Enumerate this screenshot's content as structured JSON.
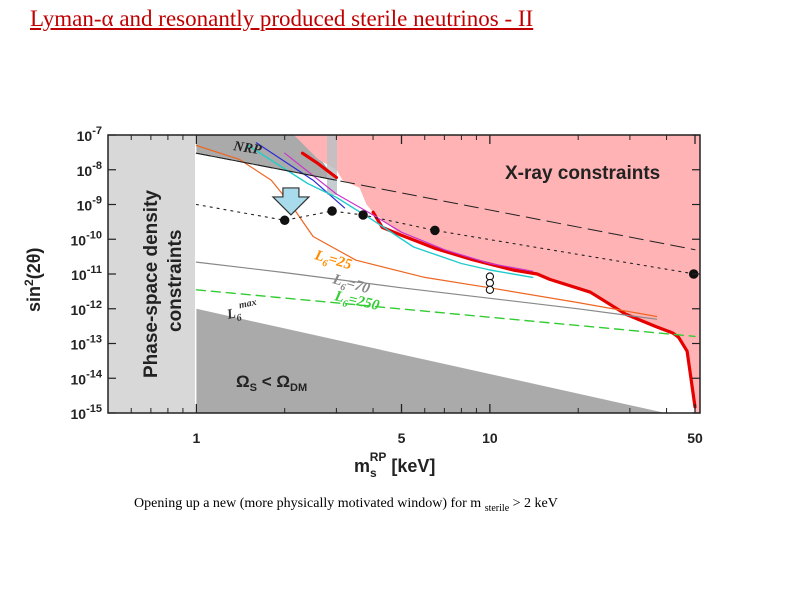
{
  "slide": {
    "title": "Lyman-α and resonantly produced sterile neutrinos - II",
    "caption_main": "Opening up a new (more physically motivated window) for m",
    "caption_sub": "sterile",
    "caption_tail": " > 2 keV"
  },
  "colors": {
    "title": "#c00000",
    "xray_region": "#ffb3b5",
    "phase_space_region": "#d8d8d8",
    "omega_region": "#aaaaaa",
    "constraint_curve": "#e60000",
    "lyman_arrow": "#a8dcec"
  },
  "chart_data": {
    "type": "line",
    "xscale": "log",
    "yscale": "log",
    "xlim": [
      0.5,
      52
    ],
    "ylim": [
      1e-15,
      1e-07
    ],
    "xticks": [
      1,
      5,
      10,
      50
    ],
    "xtick_labels": [
      "1",
      "5",
      "10",
      "50"
    ],
    "yticks": [
      1e-07,
      1e-08,
      1e-09,
      1e-10,
      1e-11,
      1e-12,
      1e-13,
      1e-14,
      1e-15
    ],
    "ytick_labels": [
      {
        "base": "10",
        "exp": "-7"
      },
      {
        "base": "10",
        "exp": "-8"
      },
      {
        "base": "10",
        "exp": "-9"
      },
      {
        "base": "10",
        "exp": "-10"
      },
      {
        "base": "10",
        "exp": "-11"
      },
      {
        "base": "10",
        "exp": "-12"
      },
      {
        "base": "10",
        "exp": "-13"
      },
      {
        "base": "10",
        "exp": "-14"
      },
      {
        "base": "10",
        "exp": "-15"
      }
    ],
    "xlabel": {
      "main": "m",
      "sub": "s",
      "sup": "RP",
      "unit": " [keV]"
    },
    "ylabel": {
      "main": "sin",
      "sup": "2",
      "tail": "(2θ)"
    },
    "regions": {
      "phase_space_label_1": "Phase-space density",
      "phase_space_label_2": "constraints",
      "xray_label": "X-ray constraints",
      "omega_label": "Ω",
      "omega_sub": "S",
      "omega_mid": " < Ω",
      "omega_sub2": "DM",
      "nrp_label": "NRP"
    },
    "annotations": [
      {
        "text": "L",
        "sub": "6",
        "tail": "=25",
        "color": "#ff8c00"
      },
      {
        "text": "L",
        "sub": "6",
        "tail": "=70",
        "color": "#888888"
      },
      {
        "text": "L",
        "sub": "6",
        "tail": "=250",
        "color": "#33cc33"
      },
      {
        "text": "L",
        "sub": "6",
        "sup": "max",
        "color": "#333333"
      }
    ],
    "xray_region": [
      {
        "x": 2.15,
        "y": 1e-07
      },
      {
        "x": 3.0,
        "y": 1e-07
      },
      {
        "x": 3.15,
        "y": 1e-07
      },
      {
        "x": 52,
        "y": 1e-07
      },
      {
        "x": 52,
        "y": 1e-15
      },
      {
        "x": 50,
        "y": 1e-15
      },
      {
        "x": 47,
        "y": 6e-14
      },
      {
        "x": 42,
        "y": 2e-13
      },
      {
        "x": 37,
        "y": 3e-13
      },
      {
        "x": 29,
        "y": 7e-13
      },
      {
        "x": 22,
        "y": 3e-12
      },
      {
        "x": 17,
        "y": 6e-12
      },
      {
        "x": 14.5,
        "y": 1e-11
      },
      {
        "x": 12,
        "y": 1.3e-11
      },
      {
        "x": 8.7,
        "y": 2.6e-11
      },
      {
        "x": 6.5,
        "y": 5.5e-11
      },
      {
        "x": 5.0,
        "y": 1.3e-10
      },
      {
        "x": 4.0,
        "y": 6e-10
      },
      {
        "x": 3.8,
        "y": 1e-09
      },
      {
        "x": 3.6,
        "y": 3e-09
      },
      {
        "x": 3.15,
        "y": 5e-09
      },
      {
        "x": 3.0,
        "y": 1e-08
      },
      {
        "x": 2.6,
        "y": 2e-08
      }
    ],
    "series": [
      {
        "name": "",
        "color": "#e60000",
        "width": 3.2,
        "dash": "",
        "points": [
          {
            "x": 4.0,
            "y": 6e-10
          },
          {
            "x": 4.3,
            "y": 2.2e-10
          },
          {
            "x": 5.0,
            "y": 1.3e-10
          },
          {
            "x": 6.5,
            "y": 5.5e-11
          },
          {
            "x": 8.7,
            "y": 2.6e-11
          },
          {
            "x": 12,
            "y": 1.3e-11
          },
          {
            "x": 14.5,
            "y": 1e-11
          },
          {
            "x": 16,
            "y": 7e-12
          },
          {
            "x": 22,
            "y": 3e-12
          },
          {
            "x": 29,
            "y": 7e-13
          },
          {
            "x": 37,
            "y": 3e-13
          },
          {
            "x": 42,
            "y": 2e-13
          },
          {
            "x": 44,
            "y": 1.5e-13
          },
          {
            "x": 47,
            "y": 6e-14
          },
          {
            "x": 50,
            "y": 1.5e-15
          }
        ]
      },
      {
        "name": "",
        "color": "#e60000",
        "width": 3.2,
        "dash": "",
        "points": [
          {
            "x": 2.3,
            "y": 3e-08
          },
          {
            "x": 2.6,
            "y": 1.5e-08
          },
          {
            "x": 3.0,
            "y": 6e-09
          }
        ]
      },
      {
        "name": "",
        "color": "#cc33cc",
        "width": 1.2,
        "dash": "",
        "points": [
          {
            "x": 2.0,
            "y": 3e-08
          },
          {
            "x": 3.0,
            "y": 2e-09
          },
          {
            "x": 4.0,
            "y": 5e-10
          },
          {
            "x": 5.0,
            "y": 1.6e-10
          },
          {
            "x": 7.0,
            "y": 5e-11
          },
          {
            "x": 10,
            "y": 2e-11
          },
          {
            "x": 14,
            "y": 1.2e-11
          }
        ]
      },
      {
        "name": "",
        "color": "#2b2bd8",
        "width": 1.2,
        "dash": "",
        "points": [
          {
            "x": 1.6,
            "y": 6e-08
          },
          {
            "x": 2.5,
            "y": 5e-09
          },
          {
            "x": 3.2,
            "y": 8e-10
          }
        ]
      },
      {
        "name": "",
        "color": "#22cccc",
        "width": 1.4,
        "dash": "",
        "points": [
          {
            "x": 1.5,
            "y": 5e-08
          },
          {
            "x": 2.4,
            "y": 4e-09
          },
          {
            "x": 3.0,
            "y": 1.6e-09
          },
          {
            "x": 4.0,
            "y": 3.5e-10
          },
          {
            "x": 5.5,
            "y": 6e-11
          },
          {
            "x": 8.0,
            "y": 2e-11
          },
          {
            "x": 10,
            "y": 1.3e-11
          },
          {
            "x": 14,
            "y": 8e-12
          }
        ]
      },
      {
        "name": "",
        "color": "#ee6622",
        "width": 1.2,
        "dash": "",
        "points": [
          {
            "x": 1.0,
            "y": 5e-08
          },
          {
            "x": 1.4,
            "y": 2e-08
          },
          {
            "x": 1.8,
            "y": 5e-09
          },
          {
            "x": 2.1,
            "y": 1e-09
          },
          {
            "x": 2.5,
            "y": 1.2e-10
          },
          {
            "x": 3.5,
            "y": 2.5e-11
          },
          {
            "x": 6.0,
            "y": 8e-12
          },
          {
            "x": 10,
            "y": 4e-12
          },
          {
            "x": 20,
            "y": 1.5e-12
          },
          {
            "x": 37,
            "y": 6e-13
          }
        ]
      },
      {
        "name": "",
        "color": "#888888",
        "width": 1.2,
        "dash": "",
        "points": [
          {
            "x": 1.0,
            "y": 2.2e-11
          },
          {
            "x": 2.0,
            "y": 1.1e-11
          },
          {
            "x": 5.0,
            "y": 4e-12
          },
          {
            "x": 10,
            "y": 2e-12
          },
          {
            "x": 20,
            "y": 1e-12
          },
          {
            "x": 37,
            "y": 5e-13
          }
        ]
      },
      {
        "name": "",
        "color": "#33cc33",
        "width": 1.4,
        "dash": "9,6",
        "points": [
          {
            "x": 1.0,
            "y": 3.5e-12
          },
          {
            "x": 50,
            "y": 1.6e-13
          }
        ]
      },
      {
        "name": "",
        "color": "#222222",
        "width": 1.0,
        "dash": "14,7",
        "points": [
          {
            "x": 1.0,
            "y": 3e-08
          },
          {
            "x": 50,
            "y": 5e-11
          }
        ]
      },
      {
        "name": "",
        "color": "#222222",
        "width": 1.1,
        "dash": "2,5",
        "points": [
          {
            "x": 1.0,
            "y": 1e-09
          },
          {
            "x": 2.0,
            "y": 3.5e-10
          },
          {
            "x": 2.9,
            "y": 6.5e-10
          },
          {
            "x": 3.7,
            "y": 5e-10
          },
          {
            "x": 6.5,
            "y": 1.8e-10
          },
          {
            "x": 50,
            "y": 1e-11
          }
        ]
      },
      {
        "name": "",
        "color": "#222222",
        "width": 1.0,
        "dash": "",
        "points": [
          {
            "x": 1.0,
            "y": 3e-08
          },
          {
            "x": 3.0,
            "y": 5e-09
          }
        ]
      }
    ],
    "markers": [
      {
        "x": 2.0,
        "y": 3.5e-10,
        "filled": true
      },
      {
        "x": 2.9,
        "y": 6.5e-10,
        "filled": true
      },
      {
        "x": 3.7,
        "y": 5e-10,
        "filled": true
      },
      {
        "x": 6.5,
        "y": 1.8e-10,
        "filled": true
      },
      {
        "x": 49.5,
        "y": 1e-11,
        "filled": true
      },
      {
        "x": 10,
        "y": 8.5e-12,
        "filled": false
      },
      {
        "x": 10,
        "y": 5.5e-12,
        "filled": false
      },
      {
        "x": 10,
        "y": 3.5e-12,
        "filled": false
      }
    ],
    "arrow": {
      "x": 2.1,
      "y_top": 3e-09,
      "y_bottom": 5e-10
    }
  }
}
